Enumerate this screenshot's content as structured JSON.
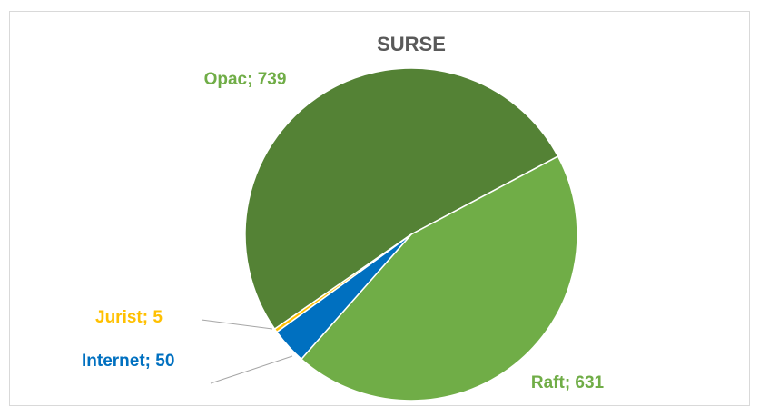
{
  "chart_data": {
    "type": "pie",
    "title": "SURSE",
    "values": [
      739,
      631,
      50,
      5
    ],
    "value_labels": [
      "Opac; 739",
      "Raft; 631",
      "Internet; 50",
      "Jurist; 5"
    ],
    "colors": [
      "#548235",
      "#70ad47",
      "#0070c0",
      "#ffc000"
    ],
    "label_colors": [
      "#70ad47",
      "#70ad47",
      "#0070c0",
      "#ffc000"
    ]
  }
}
